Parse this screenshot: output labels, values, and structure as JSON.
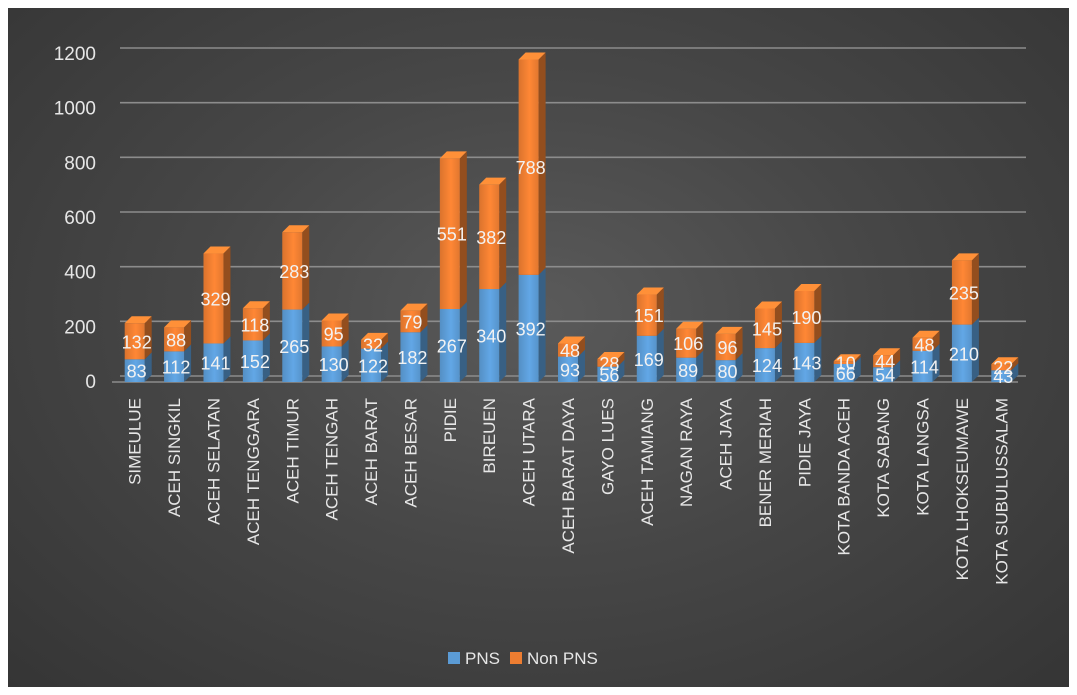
{
  "chart_data": {
    "type": "bar",
    "stacked": true,
    "categories": [
      "SIMEULUE",
      "ACEH SINGKIL",
      "ACEH SELATAN",
      "ACEH TENGGARA",
      "ACEH TIMUR",
      "ACEH TENGAH",
      "ACEH BARAT",
      "ACEH BESAR",
      "PIDIE",
      "BIREUEN",
      "ACEH UTARA",
      "ACEH BARAT DAYA",
      "GAYO LUES",
      "ACEH TAMIANG",
      "NAGAN RAYA",
      "ACEH JAYA",
      "BENER MERIAH",
      "PIDIE JAYA",
      "KOTA BANDA ACEH",
      "KOTA SABANG",
      "KOTA LANGSA",
      "KOTA LHOKSEUMAWE",
      "KOTA SUBULUSSALAM"
    ],
    "series": [
      {
        "name": "PNS",
        "color": "#5b9bd5",
        "values": [
          83,
          112,
          141,
          152,
          265,
          130,
          122,
          182,
          267,
          340,
          392,
          93,
          56,
          169,
          89,
          80,
          124,
          143,
          66,
          54,
          114,
          210,
          43
        ]
      },
      {
        "name": "Non PNS",
        "color": "#ed7d31",
        "values": [
          132,
          88,
          329,
          118,
          283,
          95,
          32,
          79,
          551,
          382,
          788,
          48,
          28,
          151,
          106,
          96,
          145,
          190,
          10,
          44,
          48,
          235,
          22
        ]
      }
    ],
    "ylim": [
      0,
      1200
    ],
    "yticks": [
      0,
      200,
      400,
      600,
      800,
      1000,
      1200
    ],
    "grid": true,
    "legend": "bottom",
    "style": "3d-column"
  }
}
